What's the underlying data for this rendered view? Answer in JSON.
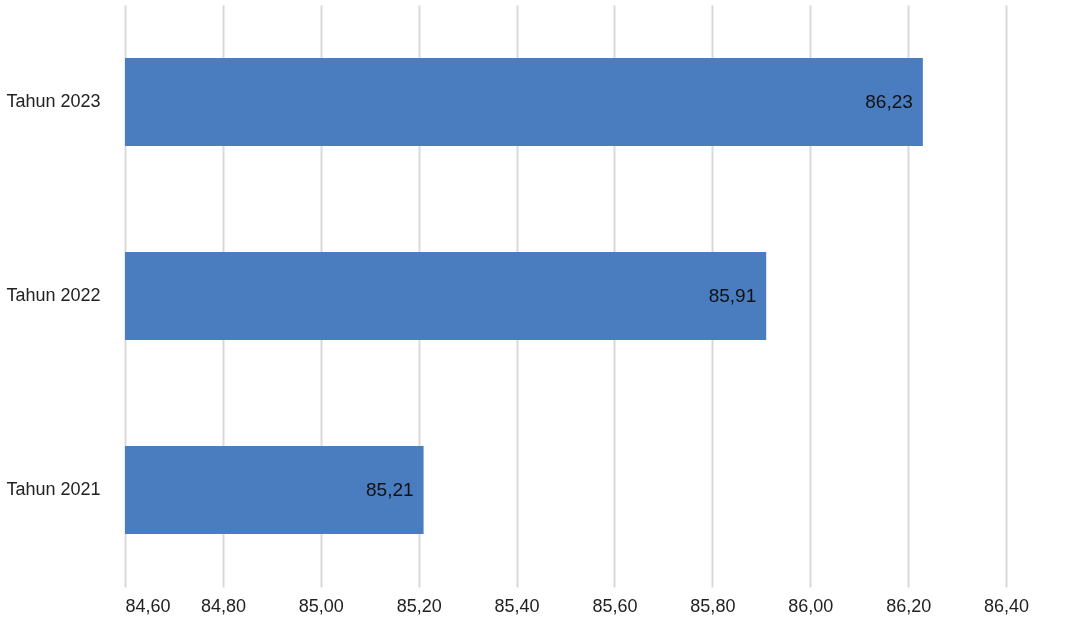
{
  "chart_data": {
    "type": "bar",
    "orientation": "horizontal",
    "categories": [
      "Tahun 2023",
      "Tahun 2022",
      "Tahun 2021"
    ],
    "values": [
      86.23,
      85.91,
      85.21
    ],
    "value_labels": [
      "86,23",
      "85,91",
      "85,21"
    ],
    "color": "#4a7cc0",
    "xlim": [
      84.6,
      86.5
    ],
    "xticks": [
      {
        "value": 84.6,
        "label": "84,60"
      },
      {
        "value": 84.8,
        "label": "84,80"
      },
      {
        "value": 85.0,
        "label": "85,00"
      },
      {
        "value": 85.2,
        "label": "85,20"
      },
      {
        "value": 85.4,
        "label": "85,40"
      },
      {
        "value": 85.6,
        "label": "85,60"
      },
      {
        "value": 85.8,
        "label": "85,80"
      },
      {
        "value": 86.0,
        "label": "86,00"
      },
      {
        "value": 86.2,
        "label": "86,20"
      },
      {
        "value": 86.4,
        "label": "86,40"
      }
    ],
    "grid": "x",
    "legend": false
  }
}
